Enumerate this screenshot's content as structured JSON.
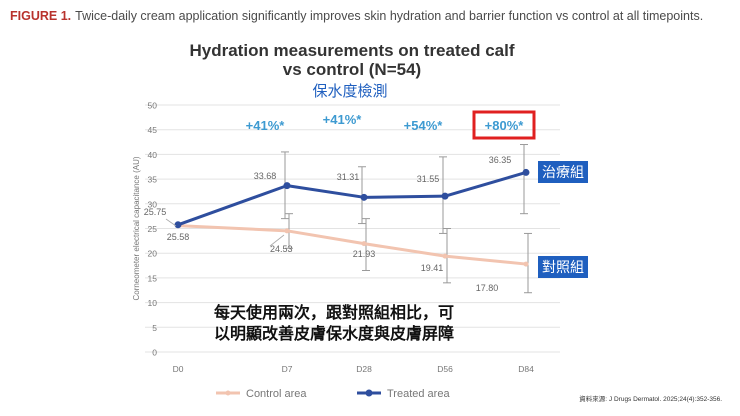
{
  "figure_caption": {
    "label": "FIGURE 1.",
    "text": "Twice-daily cream application significantly improves skin hydration and barrier function vs control at all timepoints."
  },
  "source_note": "資料來源: J Drugs Dermatol. 2025;24(4):352-356.",
  "chart_data": {
    "type": "line",
    "title_lines": [
      "Hydration measurements on treated calf",
      "vs control (N=54)"
    ],
    "title_annotation": "保水度檢測",
    "ylabel": "Corneometer electrical capacitance (AU)",
    "ylim": [
      0,
      50
    ],
    "yticks": [
      0,
      5,
      10,
      15,
      20,
      25,
      30,
      35,
      40,
      45,
      50
    ],
    "categories": [
      "D0",
      "D7",
      "D28",
      "D56",
      "D84"
    ],
    "grid": "horizontal",
    "legend_placement": "bottom",
    "series": [
      {
        "name": "Control area",
        "color": "#f2c4b0",
        "values": [
          25.58,
          24.53,
          21.93,
          19.41,
          17.8
        ],
        "labels": [
          "25.58",
          "24.53",
          "21.93",
          "19.41",
          "17.80"
        ],
        "error_bars": [
          null,
          [
            21,
            28
          ],
          [
            16.5,
            27
          ],
          [
            14,
            25
          ],
          [
            12,
            24
          ]
        ]
      },
      {
        "name": "Treated area",
        "color": "#2e4e9e",
        "values": [
          25.75,
          33.68,
          31.31,
          31.55,
          36.35
        ],
        "labels": [
          "25.75",
          "33.68",
          "31.31",
          "31.55",
          "36.35"
        ],
        "error_bars": [
          null,
          [
            27,
            40.5
          ],
          [
            26,
            37.5
          ],
          [
            24,
            39.5
          ],
          [
            28,
            42
          ]
        ]
      }
    ],
    "improvements": [
      {
        "category": "D7",
        "label": "+41%*"
      },
      {
        "category": "D28",
        "label": "+41%*"
      },
      {
        "category": "D56",
        "label": "+54%*"
      },
      {
        "category": "D84",
        "label": "+80%*",
        "highlighted": true,
        "highlight_color": "#e02020"
      }
    ],
    "improvement_color": "#3d9ad1",
    "series_tags": {
      "treated": "治療組",
      "control": "對照組",
      "tag_bg": "#1f5fbf"
    },
    "annotation_lines": [
      "每天使用兩次，跟對照組相比，可",
      "以明顯改善皮膚保水度與皮膚屏障"
    ]
  }
}
